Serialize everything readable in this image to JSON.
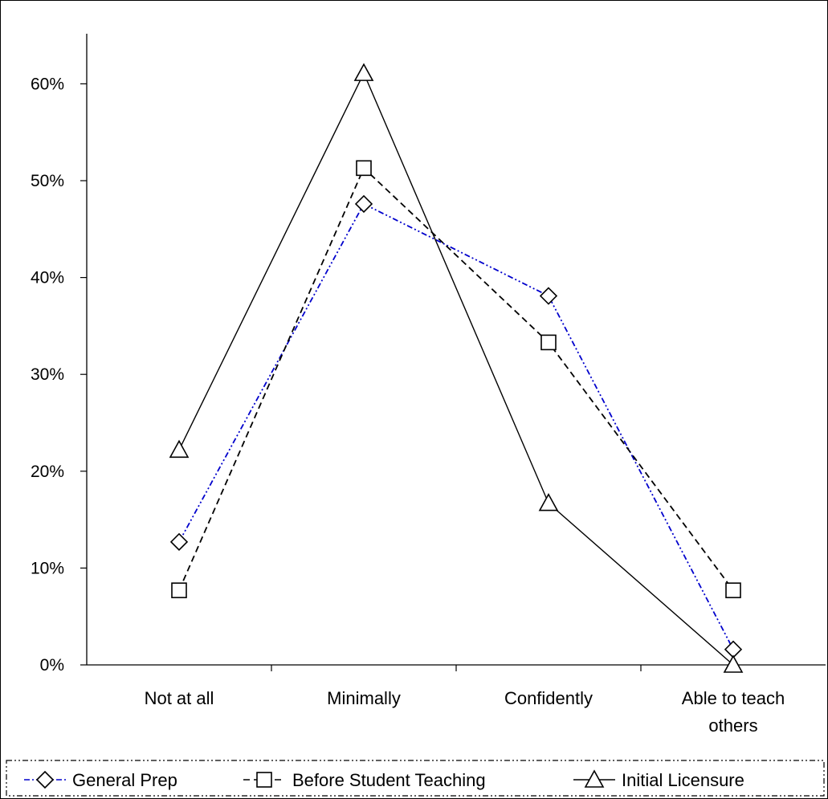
{
  "chart_data": {
    "type": "line",
    "categories": [
      "Not at all",
      "Minimally",
      "Confidently",
      "Able to teach others"
    ],
    "category_lines": [
      [
        "Not at all"
      ],
      [
        "Minimally"
      ],
      [
        "Confidently"
      ],
      [
        "Able to teach",
        "others"
      ]
    ],
    "y_ticks": [
      "0%",
      "10%",
      "20%",
      "30%",
      "40%",
      "50%",
      "60%"
    ],
    "ylim": [
      0,
      0.65
    ],
    "y_tick_values": [
      0,
      0.1,
      0.2,
      0.3,
      0.4,
      0.5,
      0.6
    ],
    "grid": false,
    "legend_position": "bottom",
    "series": [
      {
        "name": "General Prep",
        "values": [
          0.127,
          0.476,
          0.381,
          0.016
        ],
        "color": "#0000cc",
        "dash": "dash-dot-dot",
        "marker": "diamond"
      },
      {
        "name": "Before Student Teaching",
        "values": [
          0.077,
          0.513,
          0.333,
          0.077
        ],
        "color": "#000000",
        "dash": "dashed",
        "marker": "square"
      },
      {
        "name": "Initial Licensure",
        "values": [
          0.222,
          0.611,
          0.167,
          0.0
        ],
        "color": "#000000",
        "dash": "solid",
        "marker": "triangle"
      }
    ]
  }
}
